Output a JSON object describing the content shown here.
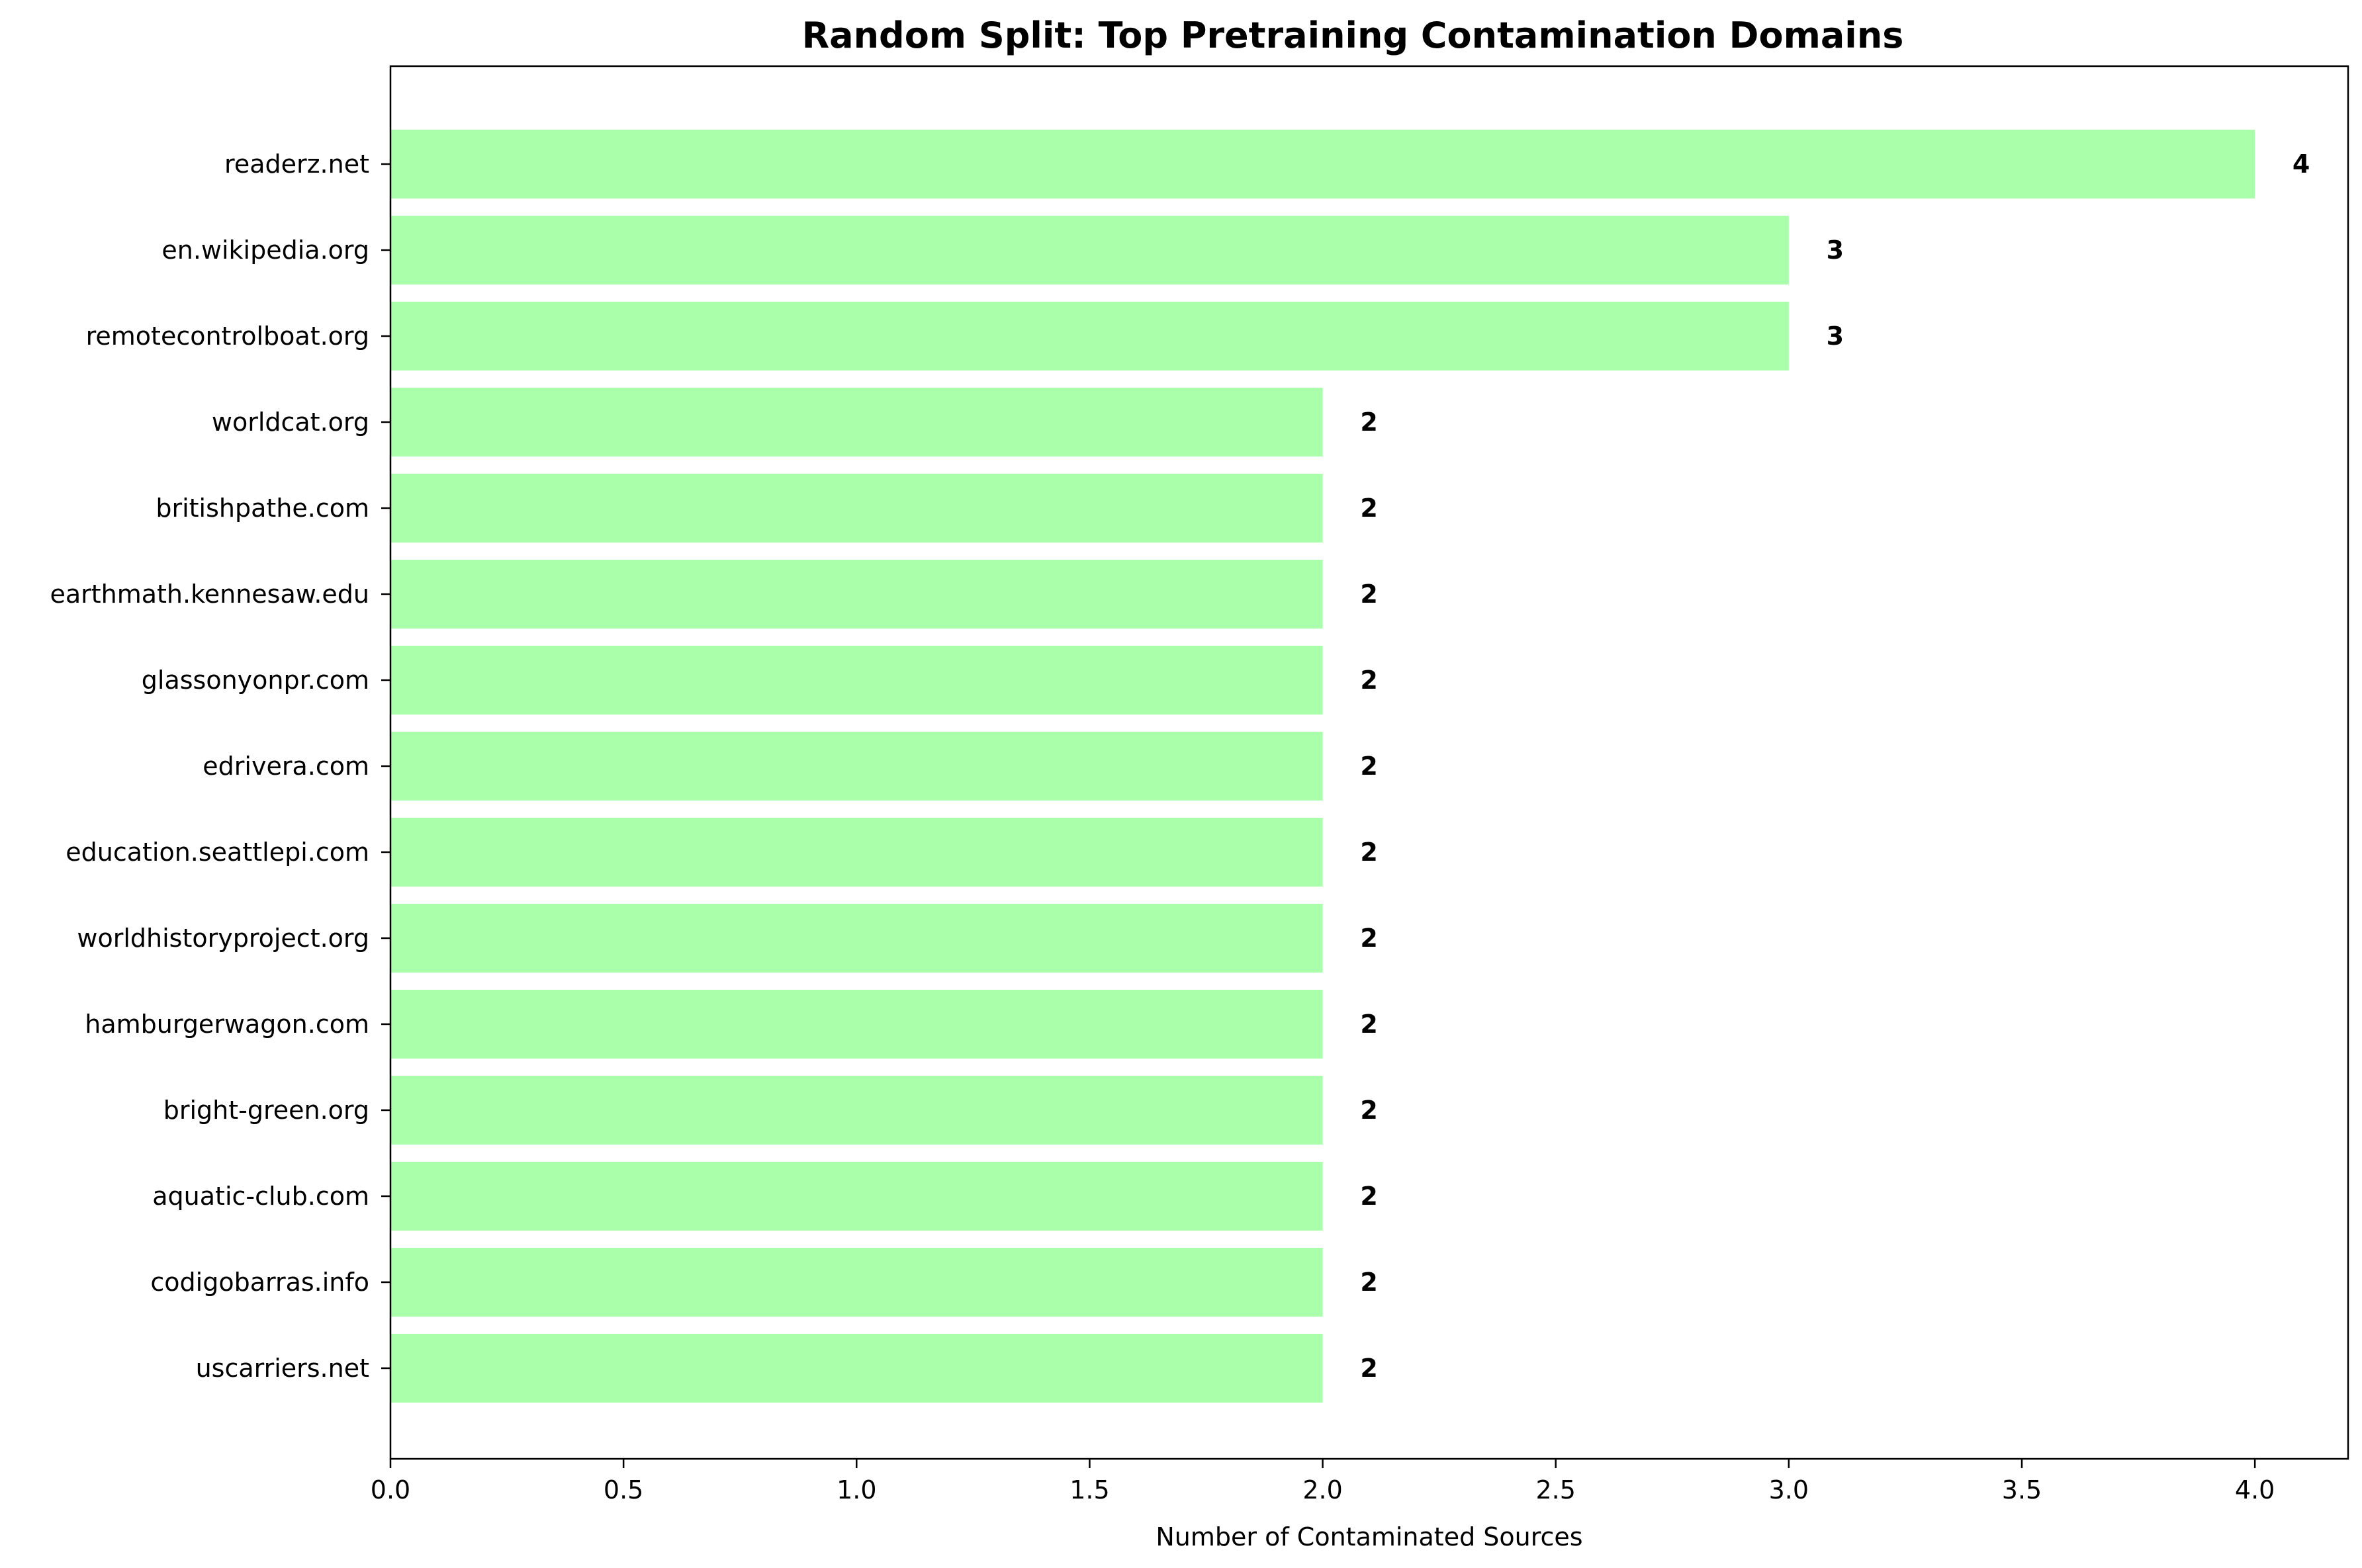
{
  "chart_data": {
    "type": "bar",
    "orientation": "horizontal",
    "title": "Random Split: Top Pretraining Contamination Domains",
    "xlabel": "Number of Contaminated Sources",
    "ylabel": "",
    "categories": [
      "readerz.net",
      "en.wikipedia.org",
      "remotecontrolboat.org",
      "worldcat.org",
      "britishpathe.com",
      "earthmath.kennesaw.edu",
      "glassonyonpr.com",
      "edrivera.com",
      "education.seattlepi.com",
      "worldhistoryproject.org",
      "hamburgerwagon.com",
      "bright-green.org",
      "aquatic-club.com",
      "codigobarras.info",
      "uscarriers.net"
    ],
    "values": [
      4,
      3,
      3,
      2,
      2,
      2,
      2,
      2,
      2,
      2,
      2,
      2,
      2,
      2,
      2
    ],
    "value_labels": [
      "4",
      "3",
      "3",
      "2",
      "2",
      "2",
      "2",
      "2",
      "2",
      "2",
      "2",
      "2",
      "2",
      "2",
      "2"
    ],
    "xlim": [
      0,
      4.2
    ],
    "xticks": [
      0.0,
      0.5,
      1.0,
      1.5,
      2.0,
      2.5,
      3.0,
      3.5,
      4.0
    ],
    "xtick_labels": [
      "0.0",
      "0.5",
      "1.0",
      "1.5",
      "2.0",
      "2.5",
      "3.0",
      "3.5",
      "4.0"
    ],
    "bar_color": "#aaffaa",
    "grid": false,
    "legend": "none"
  }
}
